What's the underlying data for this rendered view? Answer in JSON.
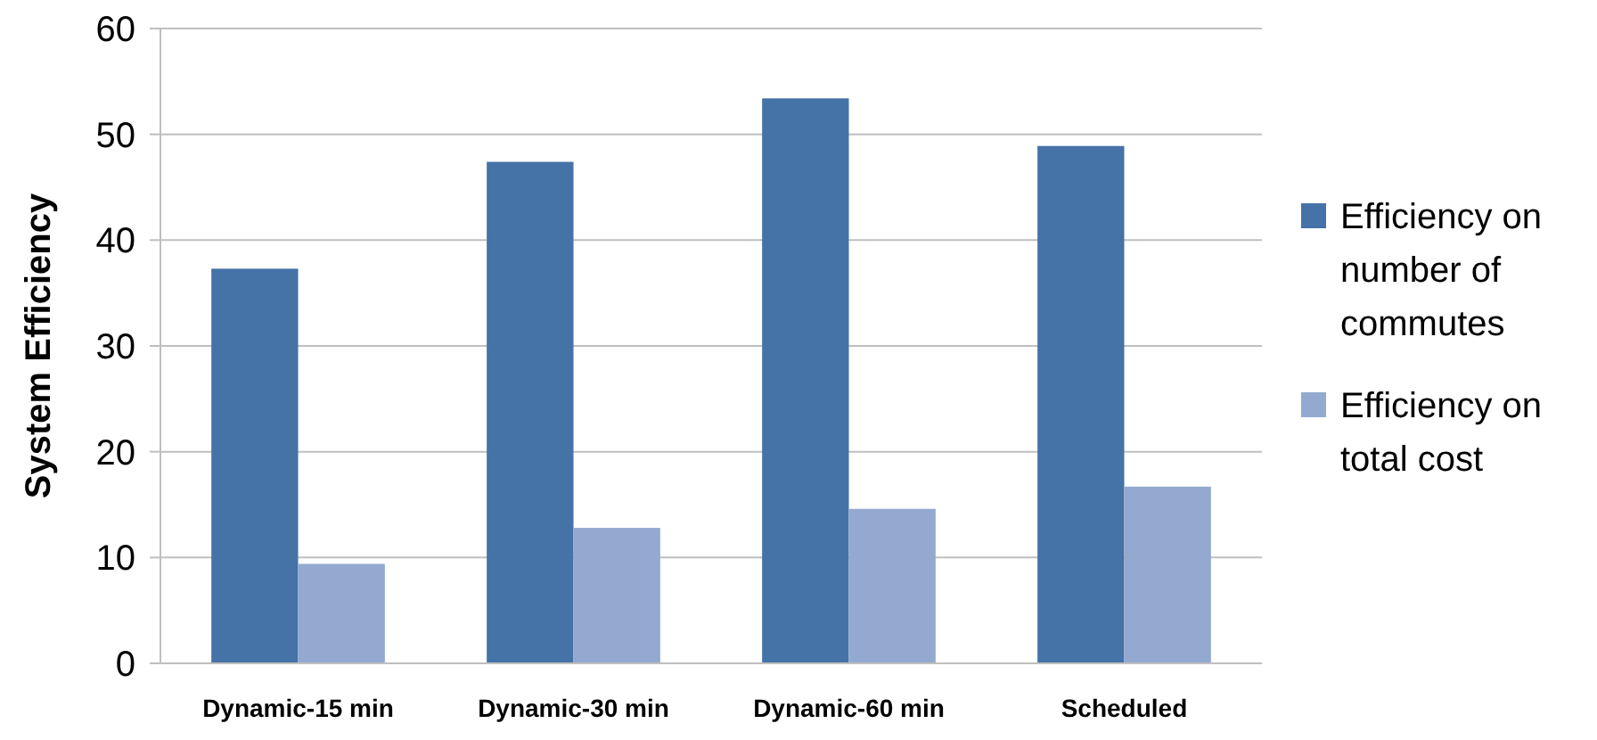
{
  "chart_data": {
    "type": "bar",
    "ylabel": "System Efficiency",
    "categories": [
      "Dynamic-15 min",
      "Dynamic-30 min",
      "Dynamic-60 min",
      "Scheduled"
    ],
    "series": [
      {
        "name": "Efficiency on number of commutes",
        "color": "#4572a7",
        "values": [
          37.3,
          47.4,
          53.4,
          48.9
        ]
      },
      {
        "name": "Efficiency on total cost",
        "color": "#93a9cf",
        "values": [
          9.4,
          12.8,
          14.6,
          16.7
        ]
      }
    ],
    "ylim": [
      0,
      60
    ],
    "yticks": [
      0,
      10,
      20,
      30,
      40,
      50,
      60
    ],
    "grid": "y",
    "legend": "right"
  }
}
